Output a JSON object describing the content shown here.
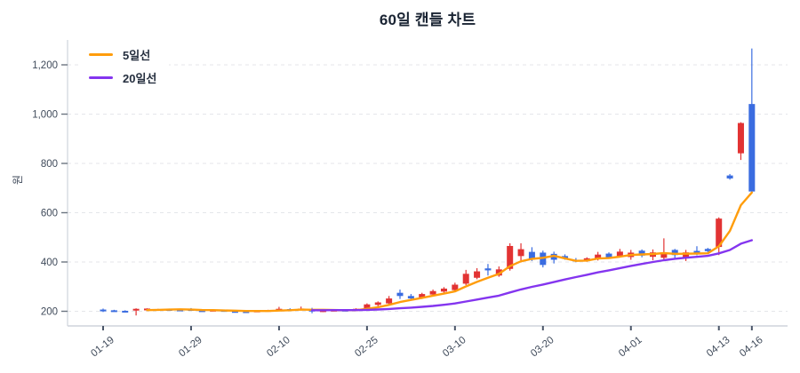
{
  "title": "60일 캔들 차트",
  "legend": {
    "items": [
      {
        "label": "5일선",
        "color": "#ff9d0c"
      },
      {
        "label": "20일선",
        "color": "#8435ef"
      }
    ]
  },
  "chart_data": {
    "type": "candlestick",
    "title": "60일 캔들 차트",
    "ylabel": "원",
    "ylim": [
      150,
      1320
    ],
    "grid": "horizontal dashed",
    "legend_position": "top-left",
    "up_color": "#e23333",
    "down_color": "#3a6ce0",
    "ma5": {
      "label": "5일선",
      "window": 5,
      "color": "#ff9d0c"
    },
    "ma20": {
      "label": "20일선",
      "window": 20,
      "color": "#8435ef"
    },
    "y_ticks": [
      {
        "value": 200,
        "label": "200"
      },
      {
        "value": 400,
        "label": "400"
      },
      {
        "value": 600,
        "label": "600"
      },
      {
        "value": 800,
        "label": "800"
      },
      {
        "value": 1000,
        "label": "1,000"
      },
      {
        "value": 1200,
        "label": "1,200"
      }
    ],
    "x_ticks": [
      {
        "index": 0,
        "label": "01-19"
      },
      {
        "index": 8,
        "label": "01-29"
      },
      {
        "index": 16,
        "label": "02-10"
      },
      {
        "index": 24,
        "label": "02-25"
      },
      {
        "index": 32,
        "label": "03-10"
      },
      {
        "index": 40,
        "label": "03-20"
      },
      {
        "index": 48,
        "label": "04-01"
      },
      {
        "index": 56,
        "label": "04-13"
      },
      {
        "index": 59,
        "label": "04-16"
      }
    ],
    "candles_ohlc": [
      [
        207,
        211,
        197,
        203
      ],
      [
        204,
        206,
        200,
        201
      ],
      [
        202,
        204,
        196,
        198
      ],
      [
        205,
        212,
        183,
        210
      ],
      [
        206,
        212,
        204,
        211
      ],
      [
        205,
        210,
        202,
        209
      ],
      [
        209,
        211,
        204,
        206
      ],
      [
        207,
        209,
        201,
        204
      ],
      [
        209,
        213,
        203,
        205
      ],
      [
        204,
        206,
        199,
        202
      ],
      [
        203,
        207,
        200,
        206
      ],
      [
        205,
        206,
        198,
        200
      ],
      [
        201,
        203,
        196,
        199
      ],
      [
        200,
        202,
        195,
        198
      ],
      [
        199,
        204,
        197,
        203
      ],
      [
        202,
        206,
        200,
        205
      ],
      [
        204,
        218,
        202,
        210
      ],
      [
        209,
        212,
        203,
        206
      ],
      [
        206,
        219,
        204,
        211
      ],
      [
        208,
        214,
        192,
        199
      ],
      [
        200,
        205,
        197,
        204
      ],
      [
        203,
        207,
        200,
        206
      ],
      [
        206,
        208,
        200,
        203
      ],
      [
        205,
        212,
        202,
        210
      ],
      [
        212,
        232,
        206,
        228
      ],
      [
        226,
        240,
        220,
        236
      ],
      [
        232,
        262,
        228,
        252
      ],
      [
        275,
        288,
        250,
        262
      ],
      [
        262,
        270,
        248,
        252
      ],
      [
        255,
        275,
        250,
        270
      ],
      [
        268,
        288,
        262,
        282
      ],
      [
        280,
        298,
        272,
        292
      ],
      [
        286,
        316,
        278,
        308
      ],
      [
        312,
        368,
        306,
        352
      ],
      [
        336,
        375,
        330,
        362
      ],
      [
        374,
        392,
        345,
        366
      ],
      [
        345,
        382,
        340,
        370
      ],
      [
        372,
        476,
        365,
        465
      ],
      [
        424,
        476,
        398,
        452
      ],
      [
        441,
        460,
        404,
        410
      ],
      [
        438,
        446,
        378,
        388
      ],
      [
        433,
        442,
        394,
        409
      ],
      [
        424,
        431,
        409,
        414
      ],
      [
        409,
        416,
        399,
        403
      ],
      [
        405,
        419,
        401,
        415
      ],
      [
        412,
        441,
        406,
        430
      ],
      [
        434,
        439,
        414,
        418
      ],
      [
        424,
        453,
        418,
        442
      ],
      [
        420,
        449,
        409,
        438
      ],
      [
        446,
        451,
        419,
        426
      ],
      [
        421,
        451,
        407,
        439
      ],
      [
        417,
        496,
        409,
        435
      ],
      [
        449,
        453,
        414,
        428
      ],
      [
        419,
        449,
        404,
        439
      ],
      [
        445,
        464,
        427,
        431
      ],
      [
        453,
        457,
        439,
        444
      ],
      [
        461,
        581,
        428,
        576
      ],
      [
        751,
        757,
        734,
        739
      ],
      [
        841,
        967,
        814,
        964
      ],
      [
        1041,
        1266,
        679,
        686
      ]
    ]
  }
}
